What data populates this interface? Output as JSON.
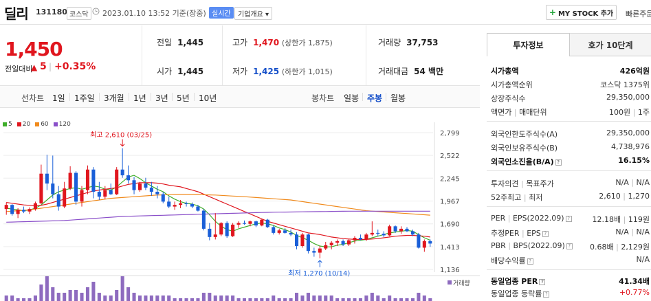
{
  "header": {
    "stock_name": "딜리",
    "code": "131180",
    "market": "코스닥",
    "datetime": "2023.01.10 13:52 기준(장중)",
    "live_badge": "실시간",
    "company_info": "기업개요",
    "mystock_label": "MY STOCK 추가",
    "quick_order": "빠른주문"
  },
  "price": {
    "current": "1,450",
    "change_label": "전일대비",
    "change_arrow": "▲",
    "change_value": "5",
    "change_separator": "|",
    "change_pct": "+0.35%"
  },
  "stats": {
    "prev_close_label": "전일",
    "prev_close": "1,445",
    "open_label": "시가",
    "open": "1,445",
    "high_label": "고가",
    "high": "1,470",
    "upper_limit": "(상한가 1,875)",
    "low_label": "저가",
    "low": "1,425",
    "lower_limit": "(하한가 1,015)",
    "volume_label": "거래량",
    "volume": "37,753",
    "amount_label": "거래대금",
    "amount": "54 백만"
  },
  "chart_tabs": {
    "line_label": "선차트",
    "line_periods": [
      "1일",
      "1주일",
      "3개월",
      "1년",
      "3년",
      "5년",
      "10년"
    ],
    "candle_label": "봉차트",
    "candle_periods": [
      "일봉",
      "주봉",
      "월봉"
    ],
    "active": "주봉"
  },
  "chart_data": {
    "type": "candlestick",
    "ma_legend": [
      "5",
      "20",
      "60",
      "120"
    ],
    "ma_colors": [
      "#3fae2a",
      "#e0161e",
      "#f08a1c",
      "#8a4fc9"
    ],
    "y_ticks": [
      "2,799",
      "2,522",
      "2,245",
      "1,967",
      "1,690",
      "1,413",
      "1,136"
    ],
    "ylim": [
      1136,
      2799
    ],
    "max_annotation": "최고 2,610 (03/25)",
    "min_annotation": "최저 1,270 (10/14)",
    "volume_label": "거래량",
    "candles": [
      [
        1870,
        1950,
        1800,
        1920
      ],
      [
        1920,
        1930,
        1790,
        1810
      ],
      [
        1810,
        1880,
        1760,
        1860
      ],
      [
        1860,
        1900,
        1820,
        1840
      ],
      [
        1840,
        1890,
        1810,
        1870
      ],
      [
        1870,
        1960,
        1850,
        1940
      ],
      [
        1940,
        2410,
        1930,
        2300
      ],
      [
        2300,
        2530,
        2100,
        2180
      ],
      [
        2180,
        2520,
        2000,
        2050
      ],
      [
        2050,
        2150,
        1850,
        1900
      ],
      [
        1900,
        2200,
        1880,
        2120
      ],
      [
        2120,
        2390,
        2100,
        2310
      ],
      [
        2310,
        2330,
        1920,
        1960
      ],
      [
        1960,
        2150,
        1900,
        2100
      ],
      [
        2100,
        2400,
        2050,
        2350
      ],
      [
        2350,
        2380,
        2000,
        2080
      ],
      [
        2080,
        2200,
        1980,
        2020
      ],
      [
        2020,
        2150,
        1990,
        2100
      ],
      [
        2100,
        2180,
        2040,
        2050
      ],
      [
        2050,
        2380,
        2040,
        2350
      ],
      [
        2350,
        2610,
        2250,
        2280
      ],
      [
        2280,
        2400,
        2180,
        2220
      ],
      [
        2220,
        2260,
        2050,
        2100
      ],
      [
        2100,
        2200,
        2080,
        2180
      ],
      [
        2180,
        2250,
        2100,
        2130
      ],
      [
        2130,
        2200,
        2030,
        2080
      ],
      [
        2080,
        2150,
        2000,
        2050
      ],
      [
        2050,
        2080,
        1940,
        1960
      ],
      [
        1960,
        2020,
        1880,
        1900
      ],
      [
        1900,
        1960,
        1860,
        1920
      ],
      [
        1920,
        1980,
        1880,
        1940
      ],
      [
        1940,
        1960,
        1900,
        1930
      ],
      [
        1930,
        1950,
        1880,
        1900
      ],
      [
        1900,
        1920,
        1840,
        1850
      ],
      [
        1850,
        1870,
        1610,
        1630
      ],
      [
        1630,
        1700,
        1490,
        1530
      ],
      [
        1530,
        1820,
        1500,
        1560
      ],
      [
        1560,
        1710,
        1540,
        1700
      ],
      [
        1700,
        1720,
        1520,
        1540
      ],
      [
        1540,
        1700,
        1530,
        1680
      ],
      [
        1680,
        1720,
        1640,
        1700
      ],
      [
        1700,
        1730,
        1680,
        1690
      ],
      [
        1690,
        1730,
        1660,
        1720
      ],
      [
        1720,
        1730,
        1650,
        1670
      ],
      [
        1670,
        1750,
        1660,
        1740
      ],
      [
        1740,
        1750,
        1640,
        1650
      ],
      [
        1650,
        1670,
        1560,
        1580
      ],
      [
        1580,
        1630,
        1560,
        1610
      ],
      [
        1610,
        1640,
        1570,
        1580
      ],
      [
        1580,
        1620,
        1540,
        1560
      ],
      [
        1560,
        1590,
        1380,
        1420
      ],
      [
        1420,
        1580,
        1400,
        1560
      ],
      [
        1560,
        1570,
        1330,
        1360
      ],
      [
        1360,
        1400,
        1290,
        1340
      ],
      [
        1340,
        1420,
        1270,
        1390
      ],
      [
        1390,
        1470,
        1370,
        1430
      ],
      [
        1430,
        1480,
        1380,
        1460
      ],
      [
        1460,
        1500,
        1420,
        1480
      ],
      [
        1480,
        1500,
        1420,
        1440
      ],
      [
        1440,
        1500,
        1420,
        1490
      ],
      [
        1490,
        1540,
        1450,
        1520
      ],
      [
        1520,
        1560,
        1490,
        1500
      ],
      [
        1500,
        1580,
        1480,
        1560
      ],
      [
        1560,
        1720,
        1540,
        1580
      ],
      [
        1580,
        1620,
        1540,
        1570
      ],
      [
        1570,
        1600,
        1530,
        1550
      ],
      [
        1550,
        1680,
        1540,
        1660
      ],
      [
        1660,
        1670,
        1580,
        1600
      ],
      [
        1600,
        1660,
        1570,
        1630
      ],
      [
        1630,
        1650,
        1590,
        1600
      ],
      [
        1600,
        1620,
        1540,
        1560
      ],
      [
        1560,
        1580,
        1390,
        1400
      ],
      [
        1400,
        1500,
        1350,
        1480
      ],
      [
        1480,
        1500,
        1410,
        1450
      ]
    ],
    "ma5": [
      1880,
      1870,
      1860,
      1850,
      1860,
      1880,
      1920,
      1980,
      2040,
      2080,
      2100,
      2120,
      2130,
      2110,
      2130,
      2150,
      2140,
      2110,
      2100,
      2140,
      2200,
      2260,
      2280,
      2240,
      2190,
      2150,
      2110,
      2080,
      2030,
      1990,
      1960,
      1940,
      1930,
      1910,
      1870,
      1800,
      1720,
      1660,
      1620,
      1600,
      1630,
      1650,
      1670,
      1690,
      1700,
      1690,
      1670,
      1640,
      1620,
      1590,
      1550,
      1520,
      1490,
      1450,
      1420,
      1410,
      1410,
      1430,
      1440,
      1460,
      1480,
      1490,
      1500,
      1520,
      1540,
      1560,
      1580,
      1590,
      1600,
      1610,
      1600,
      1560,
      1520,
      1490
    ],
    "ma20": [
      1950,
      1940,
      1930,
      1920,
      1915,
      1910,
      1915,
      1930,
      1950,
      1970,
      1990,
      2010,
      2030,
      2050,
      2070,
      2090,
      2100,
      2110,
      2120,
      2130,
      2150,
      2170,
      2180,
      2190,
      2190,
      2190,
      2185,
      2175,
      2160,
      2150,
      2140,
      2120,
      2100,
      2080,
      2050,
      2020,
      1990,
      1960,
      1930,
      1900,
      1870,
      1840,
      1810,
      1780,
      1750,
      1720,
      1700,
      1680,
      1660,
      1640,
      1620,
      1600,
      1580,
      1570,
      1560,
      1545,
      1530,
      1520,
      1510,
      1505,
      1500,
      1500,
      1500,
      1505,
      1510,
      1520,
      1530,
      1540,
      1545,
      1550,
      1550,
      1545,
      1540,
      1530
    ],
    "ma60": [
      1840,
      1845,
      1850,
      1855,
      1860,
      1870,
      1880,
      1890,
      1900,
      1910,
      1920,
      1930,
      1940,
      1950,
      1960,
      1970,
      1980,
      1990,
      2000,
      2005,
      2010,
      2015,
      2020,
      2025,
      2030,
      2035,
      2040,
      2042,
      2045,
      2047,
      2048,
      2048,
      2047,
      2046,
      2044,
      2042,
      2040,
      2036,
      2032,
      2028,
      2024,
      2020,
      2015,
      2010,
      2005,
      2000,
      1995,
      1990,
      1985,
      1980,
      1970,
      1960,
      1950,
      1940,
      1930,
      1920,
      1910,
      1900,
      1890,
      1880,
      1870,
      1860,
      1850,
      1845,
      1840,
      1835,
      1830,
      1825,
      1820,
      1815,
      1810,
      1805,
      1800,
      1795
    ],
    "ma120": [
      1710,
      1712,
      1714,
      1716,
      1718,
      1720,
      1722,
      1724,
      1726,
      1728,
      1730,
      1735,
      1740,
      1745,
      1750,
      1755,
      1760,
      1765,
      1770,
      1775,
      1780,
      1782,
      1784,
      1786,
      1788,
      1790,
      1792,
      1794,
      1796,
      1798,
      1800,
      1802,
      1804,
      1806,
      1808,
      1810,
      1812,
      1814,
      1816,
      1818,
      1820,
      1822,
      1824,
      1826,
      1828,
      1830,
      1831,
      1832,
      1833,
      1834,
      1835,
      1836,
      1837,
      1838,
      1839,
      1840,
      1841,
      1842,
      1843,
      1844,
      1844,
      1844,
      1844,
      1844,
      1844,
      1844,
      1844,
      1844,
      1844,
      1844,
      1844,
      1844,
      1844,
      1844
    ],
    "volume": [
      2,
      2,
      1,
      1,
      1,
      2,
      6,
      9,
      5,
      3,
      3,
      4,
      4,
      3,
      5,
      7,
      3,
      2,
      2,
      4,
      9,
      5,
      3,
      2,
      2,
      2,
      2,
      2,
      2,
      1,
      1,
      1,
      1,
      1,
      3,
      3,
      2,
      2,
      2,
      2,
      1,
      1,
      1,
      1,
      1,
      1,
      2,
      1,
      1,
      1,
      3,
      2,
      3,
      2,
      2,
      2,
      2,
      1,
      1,
      1,
      1,
      1,
      2,
      3,
      2,
      1,
      2,
      1,
      1,
      1,
      1,
      3,
      2,
      1
    ]
  },
  "invest": {
    "tab_active": "투자정보",
    "tab_inactive": "호가 10단계",
    "rows": {
      "market_cap_label": "시가총액",
      "market_cap": "426억원",
      "cap_rank_label": "시가총액순위",
      "cap_rank": "코스닥 1375위",
      "shares_label": "상장주식수",
      "shares": "29,350,000",
      "face_label": "액면가",
      "face_sep": "|",
      "unit_label": "매매단위",
      "face": "100원",
      "unit": "1주",
      "foreign_limit_label": "외국인한도주식수(A)",
      "foreign_limit": "29,350,000",
      "foreign_hold_label": "외국인보유주식수(B)",
      "foreign_hold": "4,738,976",
      "foreign_ratio_label": "외국인소진율(B/A)",
      "foreign_ratio": "16.15%",
      "opinion_label": "투자의견",
      "target_label": "목표주가",
      "opinion": "N/A",
      "target": "N/A",
      "w52_label": "52주최고",
      "w52_low_label": "최저",
      "w52_high": "2,610",
      "w52_low": "1,270",
      "per_label": "PER",
      "eps_label": "EPS(2022.09)",
      "per": "12.18배",
      "eps": "119원",
      "est_per_label": "추정PER",
      "est_eps_label": "EPS",
      "est_per": "N/A",
      "est_eps": "N/A",
      "pbr_label": "PBR",
      "bps_label": "BPS(2022.09)",
      "pbr": "0.68배",
      "bps": "2,129원",
      "div_label": "배당수익률",
      "div": "N/A",
      "ind_per_label": "동일업종 PER",
      "ind_per": "41.34배",
      "ind_rate_label": "동일업종 등락률",
      "ind_rate": "+0.77%"
    }
  }
}
